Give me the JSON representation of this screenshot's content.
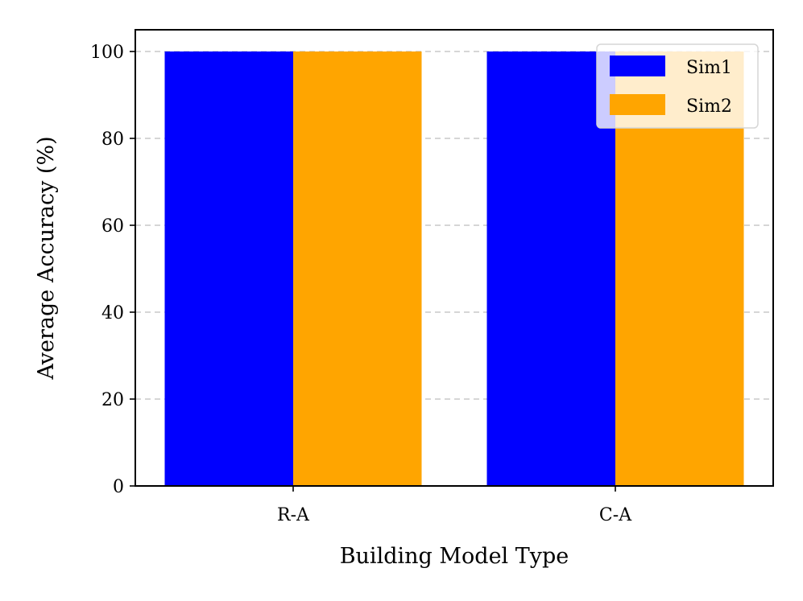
{
  "chart_data": {
    "type": "bar",
    "categories": [
      "R-A",
      "C-A"
    ],
    "series": [
      {
        "name": "Sim1",
        "values": [
          100,
          100
        ],
        "color": "#0000ff"
      },
      {
        "name": "Sim2",
        "values": [
          100,
          100
        ],
        "color": "#ffa500"
      }
    ],
    "xlabel": "Building Model Type",
    "ylabel": "Average Accuracy (%)",
    "ylim": [
      0,
      105
    ],
    "yticks": [
      0,
      20,
      40,
      60,
      80,
      100
    ],
    "grid": {
      "axis": "y",
      "style": "dashed",
      "color": "#c8c8c8"
    },
    "legend": {
      "position": "top-right"
    }
  }
}
